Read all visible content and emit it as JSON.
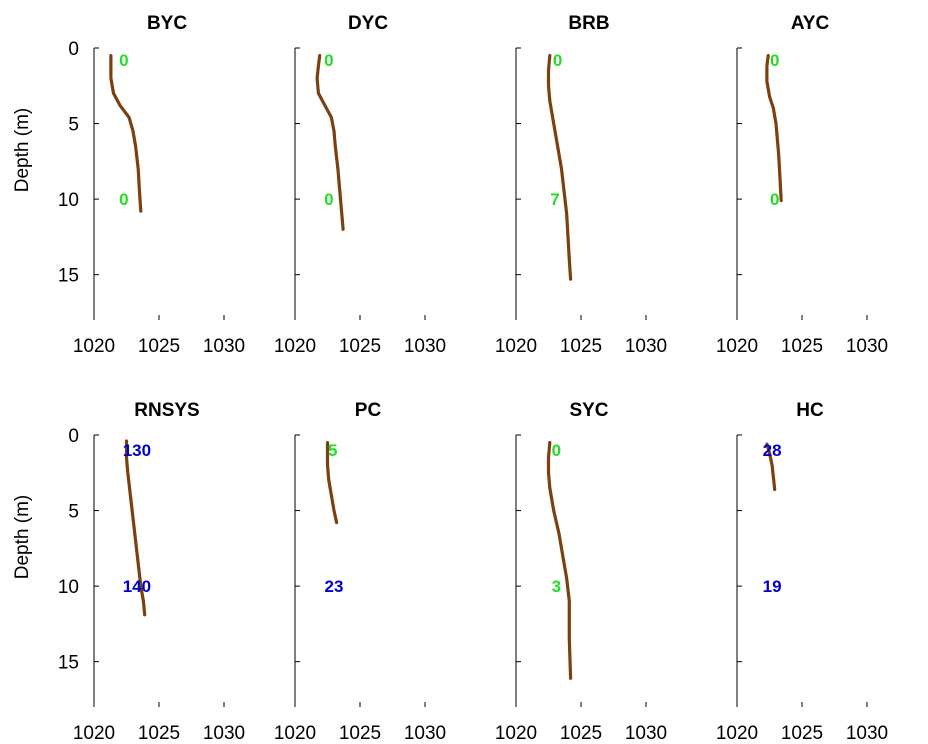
{
  "chart_data": [
    {
      "type": "line",
      "title": "BYC",
      "ylabel": "Depth (m)",
      "xlim": [
        1020,
        1030
      ],
      "ylim": [
        18,
        0
      ],
      "y_reversed": true,
      "xticks": [
        "1020",
        "1025",
        "1030"
      ],
      "yticks": [
        "0",
        "5",
        "10",
        "15"
      ],
      "line_color": "#7a4010",
      "series": [
        {
          "x": [
            1021.3,
            1021.3,
            1021.3,
            1021.5,
            1022.0,
            1022.7,
            1023.0,
            1023.2,
            1023.4,
            1023.5,
            1023.6
          ],
          "y": [
            0.5,
            1.2,
            2.0,
            3.0,
            3.8,
            4.6,
            5.5,
            6.5,
            8.0,
            9.5,
            10.8
          ]
        }
      ],
      "annotations": [
        {
          "text": "0",
          "color": "#22dd22",
          "x": 1022.3,
          "y": 0.8
        },
        {
          "text": "0",
          "color": "#22dd22",
          "x": 1022.3,
          "y": 10.0
        }
      ]
    },
    {
      "type": "line",
      "title": "DYC",
      "ylabel": "",
      "xlim": [
        1020,
        1030
      ],
      "ylim": [
        18,
        0
      ],
      "y_reversed": true,
      "xticks": [
        "1020",
        "1025",
        "1030"
      ],
      "yticks": [],
      "line_color": "#7a4010",
      "series": [
        {
          "x": [
            1021.9,
            1021.8,
            1021.7,
            1021.8,
            1022.3,
            1022.8,
            1023.0,
            1023.1,
            1023.3,
            1023.5,
            1023.7
          ],
          "y": [
            0.5,
            1.2,
            2.0,
            3.0,
            3.8,
            4.6,
            5.5,
            6.5,
            8.0,
            10.0,
            12.0
          ]
        }
      ],
      "annotations": [
        {
          "text": "0",
          "color": "#22dd22",
          "x": 1022.6,
          "y": 0.8
        },
        {
          "text": "0",
          "color": "#22dd22",
          "x": 1022.6,
          "y": 10.0
        }
      ]
    },
    {
      "type": "line",
      "title": "BRB",
      "ylabel": "",
      "xlim": [
        1020,
        1030
      ],
      "ylim": [
        18,
        0
      ],
      "y_reversed": true,
      "xticks": [
        "1020",
        "1025",
        "1030"
      ],
      "yticks": [],
      "line_color": "#7a4010",
      "series": [
        {
          "x": [
            1022.6,
            1022.5,
            1022.5,
            1022.6,
            1022.9,
            1023.2,
            1023.5,
            1023.7,
            1023.9,
            1024.0,
            1024.1,
            1024.2
          ],
          "y": [
            0.5,
            1.5,
            2.5,
            3.5,
            5.0,
            6.5,
            8.0,
            9.5,
            11.0,
            12.5,
            14.0,
            15.3
          ]
        }
      ],
      "annotations": [
        {
          "text": "0",
          "color": "#22dd22",
          "x": 1023.2,
          "y": 0.8
        },
        {
          "text": "7",
          "color": "#22dd22",
          "x": 1023.0,
          "y": 10.0
        }
      ]
    },
    {
      "type": "line",
      "title": "AYC",
      "ylabel": "",
      "xlim": [
        1020,
        1030
      ],
      "ylim": [
        18,
        0
      ],
      "y_reversed": true,
      "xticks": [
        "1020",
        "1025",
        "1030"
      ],
      "yticks": [],
      "line_color": "#7a4010",
      "series": [
        {
          "x": [
            1022.4,
            1022.3,
            1022.3,
            1022.5,
            1022.8,
            1023.0,
            1023.1,
            1023.2,
            1023.3,
            1023.4
          ],
          "y": [
            0.5,
            1.2,
            2.2,
            3.2,
            4.0,
            5.0,
            6.0,
            7.0,
            8.5,
            10.1
          ]
        }
      ],
      "annotations": [
        {
          "text": "0",
          "color": "#22dd22",
          "x": 1022.9,
          "y": 0.8
        },
        {
          "text": "0",
          "color": "#22dd22",
          "x": 1022.9,
          "y": 10.0
        }
      ]
    },
    {
      "type": "line",
      "title": "RNSYS",
      "ylabel": "Depth (m)",
      "xlim": [
        1020,
        1030
      ],
      "ylim": [
        18,
        0
      ],
      "y_reversed": true,
      "xticks": [
        "1020",
        "1025",
        "1030"
      ],
      "yticks": [
        "0",
        "5",
        "10",
        "15"
      ],
      "line_color": "#7a4010",
      "series": [
        {
          "x": [
            1022.5,
            1022.5,
            1022.6,
            1022.8,
            1023.0,
            1023.2,
            1023.4,
            1023.6,
            1023.8,
            1023.9
          ],
          "y": [
            0.4,
            1.5,
            2.5,
            4.0,
            5.5,
            7.0,
            8.5,
            10.0,
            11.0,
            11.9
          ]
        }
      ],
      "annotations": [
        {
          "text": "130",
          "color": "#0000cc",
          "x": 1023.3,
          "y": 1.0
        },
        {
          "text": "140",
          "color": "#0000cc",
          "x": 1023.3,
          "y": 10.0
        }
      ]
    },
    {
      "type": "line",
      "title": "PC",
      "ylabel": "",
      "xlim": [
        1020,
        1030
      ],
      "ylim": [
        18,
        0
      ],
      "y_reversed": true,
      "xticks": [
        "1020",
        "1025",
        "1030"
      ],
      "yticks": [],
      "line_color": "#7a4010",
      "series": [
        {
          "x": [
            1022.5,
            1022.5,
            1022.5,
            1022.6,
            1022.8,
            1023.0,
            1023.2
          ],
          "y": [
            0.5,
            1.2,
            2.0,
            3.0,
            4.0,
            5.0,
            5.8
          ]
        }
      ],
      "annotations": [
        {
          "text": "5",
          "color": "#22dd22",
          "x": 1022.9,
          "y": 1.0
        },
        {
          "text": "23",
          "color": "#0000cc",
          "x": 1023.0,
          "y": 10.0
        }
      ]
    },
    {
      "type": "line",
      "title": "SYC",
      "ylabel": "",
      "xlim": [
        1020,
        1030
      ],
      "ylim": [
        18,
        0
      ],
      "y_reversed": true,
      "xticks": [
        "1020",
        "1025",
        "1030"
      ],
      "yticks": [],
      "line_color": "#7a4010",
      "series": [
        {
          "x": [
            1022.6,
            1022.5,
            1022.5,
            1022.6,
            1022.9,
            1023.3,
            1023.6,
            1023.9,
            1024.1,
            1024.1,
            1024.2
          ],
          "y": [
            0.5,
            1.5,
            2.5,
            3.5,
            5.0,
            6.5,
            8.0,
            9.5,
            11.0,
            13.5,
            16.1
          ]
        }
      ],
      "annotations": [
        {
          "text": "0",
          "color": "#22dd22",
          "x": 1023.1,
          "y": 1.0
        },
        {
          "text": "3",
          "color": "#22dd22",
          "x": 1023.1,
          "y": 10.0
        }
      ]
    },
    {
      "type": "line",
      "title": "HC",
      "ylabel": "",
      "xlim": [
        1020,
        1030
      ],
      "ylim": [
        18,
        0
      ],
      "y_reversed": true,
      "xticks": [
        "1020",
        "1025",
        "1030"
      ],
      "yticks": [],
      "line_color": "#7a4010",
      "series": [
        {
          "x": [
            1022.3,
            1022.5,
            1022.7,
            1022.8,
            1022.9
          ],
          "y": [
            0.6,
            1.2,
            2.0,
            2.8,
            3.6
          ]
        }
      ],
      "annotations": [
        {
          "text": "28",
          "color": "#0000cc",
          "x": 1022.7,
          "y": 1.0
        },
        {
          "text": "19",
          "color": "#0000cc",
          "x": 1022.7,
          "y": 10.0
        }
      ]
    }
  ]
}
